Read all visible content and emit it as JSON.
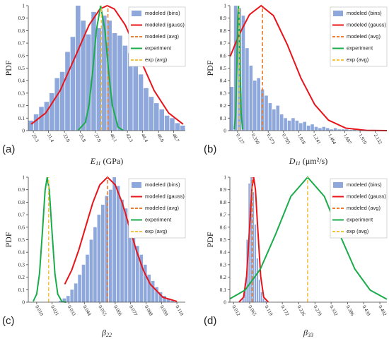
{
  "chart_data": [
    {
      "type": "histogram",
      "panel_label": "(a)",
      "ylabel": "PDF",
      "xlabel_symbol": "E",
      "xlabel_sub": "11",
      "xlabel_unit": "(GPa)",
      "ylim": [
        0,
        1
      ],
      "yticks": [
        0,
        0.1,
        0.2,
        0.3,
        0.4,
        0.5,
        0.6,
        0.7,
        0.8,
        0.9,
        1
      ],
      "xlim": [
        28.6,
        50.3
      ],
      "xticks": [
        29.3,
        31.4,
        33.6,
        35.8,
        37.9,
        40.1,
        42.3,
        44.4,
        46.6,
        48.7
      ],
      "legend": "upper right",
      "series": [
        {
          "name": "modeled (bins)",
          "color": "#8fa8dc",
          "type": "histogram",
          "bins": [
            28.6,
            29.32,
            30.05,
            30.77,
            31.49,
            32.22,
            32.94,
            33.66,
            34.39,
            35.11,
            35.83,
            36.56,
            37.28,
            38.0,
            38.73,
            39.45,
            40.17,
            40.9,
            41.62,
            42.34,
            43.07,
            43.79,
            44.51,
            45.24,
            45.96,
            46.68,
            47.41,
            48.13,
            48.85,
            49.58,
            50.3
          ],
          "values": [
            0.08,
            0.13,
            0.19,
            0.23,
            0.3,
            0.42,
            0.47,
            0.63,
            0.75,
            1.0,
            0.88,
            0.77,
            0.95,
            0.82,
            0.92,
            0.88,
            0.78,
            0.76,
            0.68,
            0.62,
            0.55,
            0.45,
            0.34,
            0.27,
            0.22,
            0.17,
            0.12,
            0.1,
            0.06,
            0.04
          ]
        },
        {
          "name": "modeled (gauss)",
          "color": "#e8141a",
          "type": "line",
          "x": [
            29,
            31,
            33,
            35,
            37,
            38.5,
            39.5,
            40.5,
            42,
            44,
            46,
            48,
            50
          ],
          "values": [
            0.051,
            0.141,
            0.32,
            0.58,
            0.845,
            0.973,
            1,
            0.973,
            0.845,
            0.58,
            0.32,
            0.141,
            0.051
          ]
        },
        {
          "name": "modeled (avg)",
          "color": "#ee7d31",
          "type": "vline",
          "linestyle": "dashed",
          "value": 39.6
        },
        {
          "name": "experiment",
          "color": "#1aac4a",
          "type": "line",
          "x": [
            35.5,
            36.5,
            37,
            37.5,
            38,
            38.6,
            39.2,
            39.7,
            40.2,
            41,
            41.7
          ],
          "values": [
            0.003,
            0.066,
            0.205,
            0.475,
            0.8,
            1,
            0.8,
            0.475,
            0.205,
            0.028,
            0.003
          ]
        },
        {
          "name": "exp (avg)",
          "color": "#f5c242",
          "type": "vline",
          "linestyle": "dashed",
          "value": 38.7
        }
      ]
    },
    {
      "type": "histogram",
      "panel_label": "(b)",
      "ylabel": "PDF",
      "xlabel_symbol": "D",
      "xlabel_sub": "11",
      "xlabel_unit": "(μm²/s)",
      "ylim": [
        0,
        1
      ],
      "yticks": [
        0,
        0.1,
        0.2,
        0.3,
        0.4,
        0.5,
        0.6,
        0.7,
        0.8,
        0.9,
        1
      ],
      "xlim": [
        0.015,
        2.3
      ],
      "xticks": [
        0.127,
        {
          "value": 0.35,
          "label": "0.350"
        },
        0.573,
        0.795,
        1.018,
        1.241,
        1.464,
        1.687,
        {
          "value": 1.91,
          "label": "1.910"
        },
        2.132
      ],
      "legend": "upper right",
      "series": [
        {
          "name": "modeled (bins)",
          "color": "#8fa8dc",
          "type": "histogram",
          "bins": [
            0.015,
            0.0708,
            0.1266,
            0.1824,
            0.2382,
            0.294,
            0.3498,
            0.4056,
            0.4614,
            0.5172,
            0.573,
            0.6288,
            0.6846,
            0.7404,
            0.7962,
            0.852,
            0.9078,
            0.9636,
            1.0194,
            1.0752,
            1.131,
            1.1868,
            1.2426,
            1.2984,
            1.3542,
            1.41,
            1.4658,
            1.5216,
            1.5774,
            1.6332,
            1.689,
            1.7448,
            1.8006,
            1.8564,
            1.9122,
            1.968,
            2.0238,
            2.0796,
            2.1354,
            2.1912,
            2.247
          ],
          "values": [
            0.35,
            1.0,
            0.98,
            0.92,
            0.66,
            0.52,
            0.4,
            0.42,
            0.33,
            0.28,
            0.22,
            0.17,
            0.2,
            0.13,
            0.1,
            0.08,
            0.1,
            0.08,
            0.06,
            0.07,
            0.04,
            0.05,
            0.03,
            0.02,
            0.03,
            0.02,
            0.01,
            0.02,
            0.01,
            0.01,
            0.01,
            0.005,
            0.01,
            0,
            0.005,
            0,
            0,
            0.005,
            0,
            0.005
          ]
        },
        {
          "name": "modeled (gauss)",
          "color": "#e8141a",
          "type": "line",
          "x": [
            0.02,
            0.15,
            0.3,
            0.47,
            0.65,
            0.85,
            1.05,
            1.25,
            1.45,
            1.7,
            2.0,
            2.3
          ],
          "values": [
            0.594,
            0.768,
            0.928,
            1,
            0.92,
            0.689,
            0.419,
            0.208,
            0.084,
            0.02,
            0.002,
            0.0002
          ]
        },
        {
          "name": "modeled (avg)",
          "color": "#ee7d31",
          "type": "vline",
          "linestyle": "dashed",
          "value": 0.49
        },
        {
          "name": "experiment",
          "color": "#1aac4a",
          "type": "line",
          "x": [
            0.08,
            0.1,
            0.115,
            0.13,
            0.14,
            0.15,
            0.165,
            0.18,
            0.2
          ],
          "values": [
            0.011,
            0.135,
            0.458,
            0.882,
            1,
            0.882,
            0.458,
            0.135,
            0.011
          ]
        },
        {
          "name": "exp (avg)",
          "color": "#f5c242",
          "type": "vline",
          "linestyle": "dashed",
          "value": 0.15
        }
      ]
    },
    {
      "type": "histogram",
      "panel_label": "(c)",
      "ylabel": "PDF",
      "xlabel_symbol": "β",
      "xlabel_sub": "22",
      "ylim": [
        0,
        1
      ],
      "yticks": [
        0,
        0.1,
        0.2,
        0.3,
        0.4,
        0.5,
        0.6,
        0.7,
        0.8,
        0.9,
        1
      ],
      "xlim": [
        0.004,
        0.116
      ],
      "xticks": [
        {
          "value": 0.01,
          "label": "0.010"
        },
        0.021,
        0.033,
        0.044,
        0.055,
        0.066,
        0.077,
        0.088,
        0.099,
        {
          "value": 0.11,
          "label": "0.110"
        }
      ],
      "legend": "upper right",
      "series": [
        {
          "name": "modeled (bins)",
          "color": "#8fa8dc",
          "type": "histogram",
          "bins": [
            0.0255,
            0.02825,
            0.031,
            0.03375,
            0.0365,
            0.03925,
            0.042,
            0.04475,
            0.0475,
            0.05025,
            0.053,
            0.05575,
            0.0585,
            0.06125,
            0.064,
            0.06675,
            0.0695,
            0.07225,
            0.075,
            0.07775,
            0.0805,
            0.08325,
            0.086,
            0.08875,
            0.0915,
            0.09425,
            0.097,
            0.09975,
            0.1025,
            0.10525,
            0.108
          ],
          "values": [
            0.01,
            0.03,
            0.05,
            0.1,
            0.15,
            0.22,
            0.3,
            0.38,
            0.5,
            0.6,
            0.7,
            0.78,
            0.85,
            0.9,
            1.0,
            0.93,
            0.82,
            0.75,
            0.65,
            0.55,
            0.45,
            0.38,
            0.3,
            0.22,
            0.17,
            0.12,
            0.08,
            0.05,
            0.03,
            0.01
          ]
        },
        {
          "name": "modeled (gauss)",
          "color": "#e8141a",
          "type": "line",
          "x": [
            0.03,
            0.035,
            0.04,
            0.045,
            0.05,
            0.055,
            0.0605,
            0.066,
            0.071,
            0.076,
            0.081,
            0.086,
            0.091,
            0.1,
            0.11
          ],
          "values": [
            0.144,
            0.257,
            0.417,
            0.607,
            0.795,
            0.939,
            1,
            0.939,
            0.795,
            0.607,
            0.417,
            0.257,
            0.144,
            0.039,
            0.006
          ]
        },
        {
          "name": "modeled (avg)",
          "color": "#ee7d31",
          "type": "vline",
          "linestyle": "dashed",
          "value": 0.0605
        },
        {
          "name": "experiment",
          "color": "#1aac4a",
          "type": "line",
          "x": [
            0.0075,
            0.01,
            0.012,
            0.014,
            0.016,
            0.0175,
            0.019,
            0.021,
            0.023,
            0.025,
            0.028,
            0.031
          ],
          "values": [
            0.0057,
            0.065,
            0.228,
            0.55,
            0.896,
            1,
            0.896,
            0.55,
            0.228,
            0.065,
            0.0046,
            0.0001
          ]
        },
        {
          "name": "exp (avg)",
          "color": "#f5c242",
          "type": "vline",
          "linestyle": "dashed",
          "value": 0.0185
        }
      ]
    },
    {
      "type": "histogram",
      "panel_label": "(d)",
      "ylabel": "PDF",
      "xlabel_symbol": "β",
      "xlabel_sub": "33",
      "ylim": [
        0,
        1
      ],
      "yticks": [
        0,
        0.1,
        0.2,
        0.3,
        0.4,
        0.5,
        0.6,
        0.7,
        0.8,
        0.9,
        1
      ],
      "xlim": [
        0,
        0.515
      ],
      "xticks": [
        0.012,
        0.065,
        0.119,
        0.172,
        0.226,
        0.279,
        0.332,
        0.386,
        0.439,
        0.492
      ],
      "legend": "upper right",
      "series": [
        {
          "name": "modeled (bins)",
          "color": "#8fa8dc",
          "type": "histogram",
          "bins": [
            0.04,
            0.0467,
            0.0534,
            0.0601,
            0.0668,
            0.0735,
            0.0802,
            0.0869,
            0.0936,
            0.1003,
            0.107,
            0.1137,
            0.1204
          ],
          "values": [
            0.03,
            0.15,
            0.5,
            0.95,
            1.0,
            0.88,
            0.62,
            0.35,
            0.18,
            0.08,
            0.03,
            0.01
          ]
        },
        {
          "name": "modeled (gauss)",
          "color": "#e8141a",
          "type": "line",
          "x": [
            0.03,
            0.045,
            0.055,
            0.065,
            0.072,
            0.078,
            0.084,
            0.091,
            0.101,
            0.111,
            0.126
          ],
          "values": [
            0.001,
            0.04,
            0.209,
            0.607,
            0.9,
            1,
            0.9,
            0.607,
            0.209,
            0.04,
            0.001
          ]
        },
        {
          "name": "modeled (avg)",
          "color": "#ee7d31",
          "type": "vline",
          "linestyle": "dashed",
          "value": 0.073
        },
        {
          "name": "experiment",
          "color": "#1aac4a",
          "type": "line",
          "x": [
            0.0,
            0.05,
            0.1,
            0.15,
            0.2,
            0.255,
            0.31,
            0.36,
            0.41,
            0.46,
            0.515
          ],
          "values": [
            0.027,
            0.097,
            0.265,
            0.543,
            0.846,
            1,
            0.846,
            0.543,
            0.265,
            0.097,
            0.023
          ]
        },
        {
          "name": "exp (avg)",
          "color": "#f5c242",
          "type": "vline",
          "linestyle": "dashed",
          "value": 0.255
        }
      ]
    }
  ]
}
